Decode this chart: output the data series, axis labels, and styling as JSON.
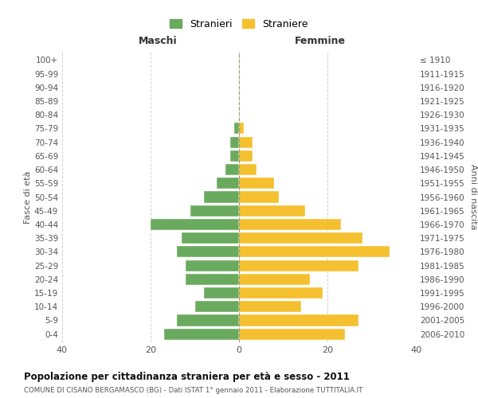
{
  "age_groups": [
    "0-4",
    "5-9",
    "10-14",
    "15-19",
    "20-24",
    "25-29",
    "30-34",
    "35-39",
    "40-44",
    "45-49",
    "50-54",
    "55-59",
    "60-64",
    "65-69",
    "70-74",
    "75-79",
    "80-84",
    "85-89",
    "90-94",
    "95-99",
    "100+"
  ],
  "birth_years": [
    "2006-2010",
    "2001-2005",
    "1996-2000",
    "1991-1995",
    "1986-1990",
    "1981-1985",
    "1976-1980",
    "1971-1975",
    "1966-1970",
    "1961-1965",
    "1956-1960",
    "1951-1955",
    "1946-1950",
    "1941-1945",
    "1936-1940",
    "1931-1935",
    "1926-1930",
    "1921-1925",
    "1916-1920",
    "1911-1915",
    "≤ 1910"
  ],
  "maschi": [
    17,
    14,
    10,
    8,
    12,
    12,
    14,
    13,
    20,
    11,
    8,
    5,
    3,
    2,
    2,
    1,
    0,
    0,
    0,
    0,
    0
  ],
  "femmine": [
    24,
    27,
    14,
    19,
    16,
    27,
    34,
    28,
    23,
    15,
    9,
    8,
    4,
    3,
    3,
    1,
    0,
    0,
    0,
    0,
    0
  ],
  "title": "Popolazione per cittadinanza straniera per età e sesso - 2011",
  "subtitle": "COMUNE DI CISANO BERGAMASCO (BG) - Dati ISTAT 1° gennaio 2011 - Elaborazione TUTTITALIA.IT",
  "xlabel_left": "Maschi",
  "xlabel_right": "Femmine",
  "ylabel_left": "Fasce di età",
  "ylabel_right": "Anni di nascita",
  "legend_maschi": "Stranieri",
  "legend_femmine": "Straniere",
  "xlim": 40,
  "bar_color_male": "#6aaa5e",
  "bar_color_female": "#f5c030",
  "grid_color": "#cccccc",
  "background_color": "#ffffff",
  "center_line_color": "#999966"
}
